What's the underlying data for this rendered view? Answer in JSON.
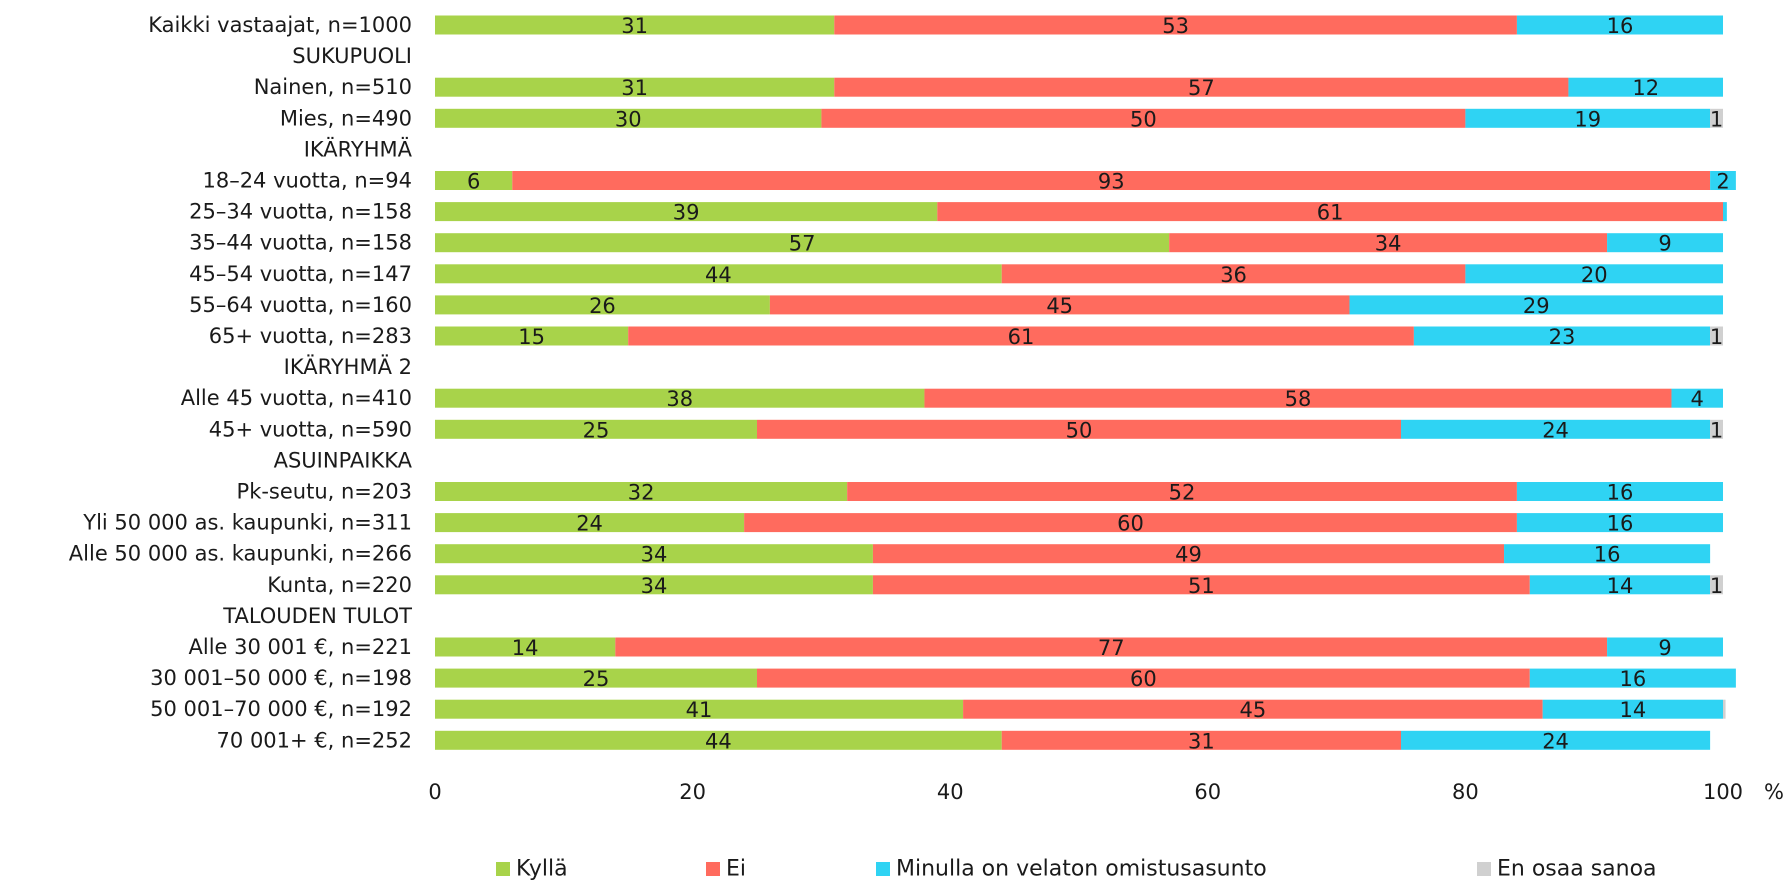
{
  "chart_data": {
    "type": "bar",
    "orientation": "horizontal",
    "stacked": true,
    "xlim": [
      0,
      100
    ],
    "x_ticks": [
      0,
      20,
      40,
      60,
      80,
      100
    ],
    "x_unit": "%",
    "grid": false,
    "legend_position": "bottom",
    "categories": [
      "Kaikki vastaajat, n=1000",
      "SUKUPUOLI",
      "Nainen, n=510",
      "Mies, n=490",
      "IKÄRYHMÄ",
      "18–24 vuotta, n=94",
      "25–34 vuotta, n=158",
      "35–44 vuotta, n=158",
      "45–54 vuotta, n=147",
      "55–64 vuotta, n=160",
      "65+ vuotta, n=283",
      "IKÄRYHMÄ 2",
      "Alle 45 vuotta, n=410",
      "45+ vuotta, n=590",
      "ASUINPAIKKA",
      "Pk-seutu, n=203",
      "Yli 50 000 as. kaupunki, n=311",
      "Alle 50 000 as. kaupunki, n=266",
      "Kunta, n=220",
      "TALOUDEN TULOT",
      "Alle 30 001 €, n=221",
      "30 001–50 000 €, n=198",
      "50 001–70 000 €, n=192",
      "70 001+ €, n=252"
    ],
    "series": [
      {
        "name": "Kyllä",
        "color": "#a8d34a",
        "values": [
          31,
          null,
          31,
          30,
          null,
          6,
          39,
          57,
          44,
          26,
          15,
          null,
          38,
          25,
          null,
          32,
          24,
          34,
          34,
          null,
          14,
          25,
          41,
          44
        ]
      },
      {
        "name": "Ei",
        "color": "#ff6b5e",
        "values": [
          53,
          null,
          57,
          50,
          null,
          93,
          61,
          34,
          36,
          45,
          61,
          null,
          58,
          50,
          null,
          52,
          60,
          49,
          51,
          null,
          77,
          60,
          45,
          31
        ]
      },
      {
        "name": "Minulla on velaton omistusasunto",
        "color": "#2fd3f3",
        "values": [
          16,
          null,
          12,
          19,
          null,
          2,
          0.3,
          9,
          20,
          29,
          23,
          null,
          4,
          24,
          null,
          16,
          16,
          16,
          14,
          null,
          9,
          16,
          14,
          24
        ]
      },
      {
        "name": "En osaa sanoa",
        "color": "#d0d0d0",
        "values": [
          0,
          null,
          0,
          1,
          null,
          0,
          0,
          0,
          0,
          0,
          1,
          null,
          0,
          1,
          null,
          0,
          0,
          0,
          1,
          null,
          0,
          0,
          0.2,
          0
        ]
      }
    ],
    "data_labels": [
      [
        "31",
        "53",
        "16",
        ""
      ],
      [
        "",
        "",
        "",
        ""
      ],
      [
        "31",
        "57",
        "12",
        ""
      ],
      [
        "30",
        "50",
        "19",
        "1"
      ],
      [
        "",
        "",
        "",
        ""
      ],
      [
        "6",
        "93",
        "2",
        ""
      ],
      [
        "39",
        "61",
        "",
        ""
      ],
      [
        "57",
        "34",
        "9",
        ""
      ],
      [
        "44",
        "36",
        "20",
        ""
      ],
      [
        "26",
        "45",
        "29",
        ""
      ],
      [
        "15",
        "61",
        "23",
        "1"
      ],
      [
        "",
        "",
        "",
        ""
      ],
      [
        "38",
        "58",
        "4",
        ""
      ],
      [
        "25",
        "50",
        "24",
        "1"
      ],
      [
        "",
        "",
        "",
        ""
      ],
      [
        "32",
        "52",
        "16",
        ""
      ],
      [
        "24",
        "60",
        "16",
        ""
      ],
      [
        "34",
        "49",
        "16",
        ""
      ],
      [
        "34",
        "51",
        "14",
        "1"
      ],
      [
        "",
        "",
        "",
        ""
      ],
      [
        "14",
        "77",
        "9",
        ""
      ],
      [
        "25",
        "60",
        "16",
        ""
      ],
      [
        "41",
        "45",
        "14",
        ""
      ],
      [
        "44",
        "31",
        "24",
        ""
      ]
    ]
  }
}
